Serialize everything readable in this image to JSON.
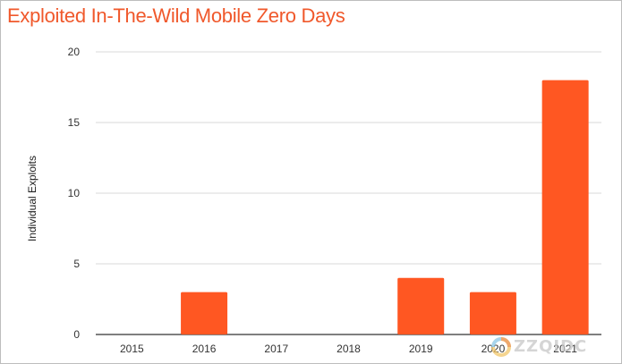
{
  "chart_data": {
    "type": "bar",
    "title": "Exploited In-The-Wild Mobile Zero Days",
    "xlabel": "",
    "ylabel": "Individual Exploits",
    "categories": [
      "2015",
      "2016",
      "2017",
      "2018",
      "2019",
      "2020",
      "2021"
    ],
    "values": [
      0,
      3,
      0,
      0,
      4,
      3,
      18
    ],
    "ylim": [
      0,
      20
    ],
    "yticks": [
      0,
      5,
      10,
      15,
      20
    ],
    "grid": true,
    "legend": "none"
  },
  "colors": {
    "title": "#f0582b",
    "bar": "#ff5722",
    "grid": "#d9d9d9",
    "axis": "#333333"
  },
  "watermark": {
    "text": "ZZQIDC",
    "icon": "zzqidc-logo-icon"
  }
}
